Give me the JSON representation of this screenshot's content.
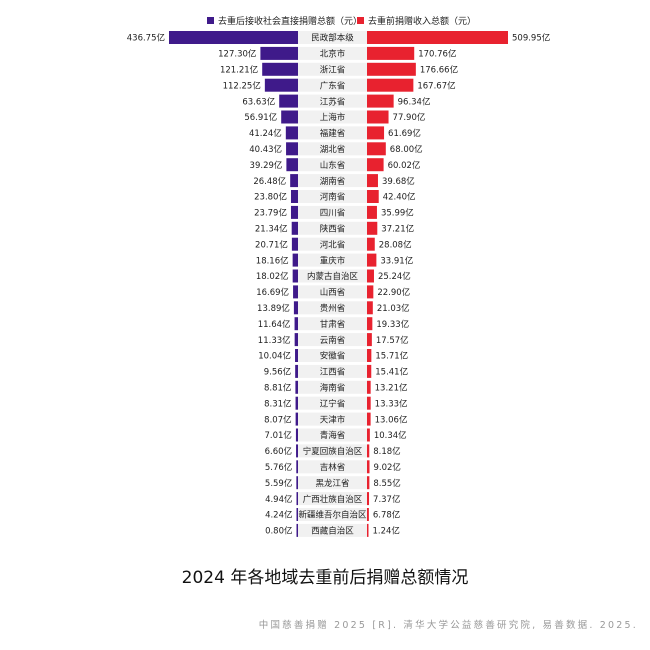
{
  "title": "2024 年各地域去重前后捐赠总额情况",
  "source": "中国慈善捐赠 2025 [R]. 清华大学公益慈善研究院, 易善数据. 2025.",
  "colors": {
    "left": "#3f1a8a",
    "right": "#e8222f",
    "label_bg": "#f1f1f1"
  },
  "chart_data": {
    "type": "bar",
    "orientation": "horizontal-diverging",
    "unit": "亿",
    "categories": [
      "民政部本级",
      "北京市",
      "浙江省",
      "广东省",
      "江苏省",
      "上海市",
      "福建省",
      "湖北省",
      "山东省",
      "湖南省",
      "河南省",
      "四川省",
      "陕西省",
      "河北省",
      "重庆市",
      "内蒙古自治区",
      "山西省",
      "贵州省",
      "甘肃省",
      "云南省",
      "安徽省",
      "江西省",
      "海南省",
      "辽宁省",
      "天津市",
      "青海省",
      "宁夏回族自治区",
      "吉林省",
      "黑龙江省",
      "广西壮族自治区",
      "新疆维吾尔自治区",
      "西藏自治区"
    ],
    "series": [
      {
        "name": "去重后接收社会直接捐赠总额（元）",
        "side": "left",
        "values": [
          436.75,
          127.3,
          121.21,
          112.25,
          63.63,
          56.91,
          41.24,
          40.43,
          39.29,
          26.48,
          23.8,
          23.79,
          21.34,
          20.71,
          18.16,
          18.02,
          16.69,
          13.89,
          11.64,
          11.33,
          10.04,
          9.56,
          8.81,
          8.31,
          8.07,
          7.01,
          6.6,
          5.76,
          5.59,
          4.94,
          4.24,
          0.8
        ],
        "labels": [
          "436.75亿",
          "127.30亿",
          "121.21亿",
          "112.25亿",
          "63.63亿",
          "56.91亿",
          "41.24亿",
          "40.43亿",
          "39.29亿",
          "26.48亿",
          "23.80亿",
          "23.79亿",
          "21.34亿",
          "20.71亿",
          "18.16亿",
          "18.02亿",
          "16.69亿",
          "13.89亿",
          "11.64亿",
          "11.33亿",
          "10.04亿",
          "9.56亿",
          "8.81亿",
          "8.31亿",
          "8.07亿",
          "7.01亿",
          "6.60亿",
          "5.76亿",
          "5.59亿",
          "4.94亿",
          "4.24亿",
          "0.80亿"
        ]
      },
      {
        "name": "去重前捐赠收入总额（元）",
        "side": "right",
        "values": [
          509.95,
          170.76,
          176.66,
          167.67,
          96.34,
          77.9,
          61.69,
          68.0,
          60.02,
          39.68,
          42.4,
          35.99,
          37.21,
          28.08,
          33.91,
          25.24,
          22.9,
          21.03,
          19.33,
          17.57,
          15.71,
          15.41,
          13.21,
          13.33,
          13.06,
          10.34,
          8.18,
          9.02,
          8.55,
          7.37,
          6.78,
          1.24
        ],
        "labels": [
          "509.95亿",
          "170.76亿",
          "176.66亿",
          "167.67亿",
          "96.34亿",
          "77.90亿",
          "61.69亿",
          "68.00亿",
          "60.02亿",
          "39.68亿",
          "42.40亿",
          "35.99亿",
          "37.21亿",
          "28.08亿",
          "33.91亿",
          "25.24亿",
          "22.90亿",
          "21.03亿",
          "19.33亿",
          "17.57亿",
          "15.71亿",
          "15.41亿",
          "13.21亿",
          "13.33亿",
          "13.06亿",
          "10.34亿",
          "8.18亿",
          "9.02亿",
          "8.55亿",
          "7.37亿",
          "6.78亿",
          "1.24亿"
        ]
      }
    ],
    "legend_position": "top-center",
    "grid": false
  }
}
